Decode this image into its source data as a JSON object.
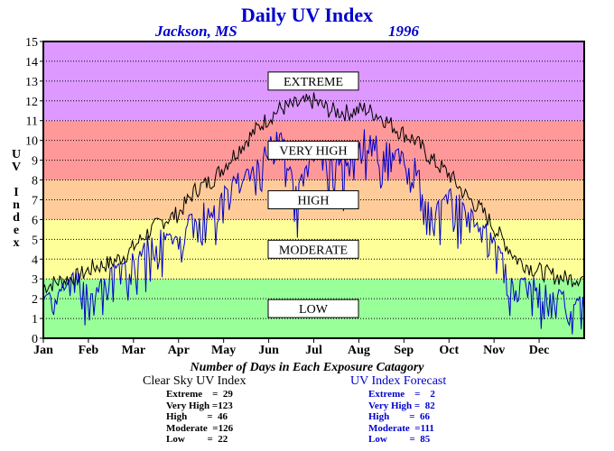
{
  "chart_data": {
    "type": "line",
    "title": "Daily UV Index",
    "subtitle_location": "Jackson, MS",
    "subtitle_year": "1996",
    "ylabel": "UV Index",
    "ylim": [
      0,
      15
    ],
    "yticks": [
      "0",
      "1",
      "2",
      "3",
      "4",
      "5",
      "6",
      "7",
      "8",
      "9",
      "10",
      "11",
      "12",
      "13",
      "14",
      "15"
    ],
    "xticks": [
      "Jan",
      "Feb",
      "Mar",
      "Apr",
      "May",
      "Jun",
      "Jul",
      "Aug",
      "Sep",
      "Oct",
      "Nov",
      "Dec"
    ],
    "grid": true,
    "bands": [
      {
        "label": "LOW",
        "from": 0,
        "to": 3,
        "color": "#99ff99"
      },
      {
        "label": "MODERATE",
        "from": 3,
        "to": 6,
        "color": "#ffff99"
      },
      {
        "label": "HIGH",
        "from": 6,
        "to": 8,
        "color": "#ffcc99"
      },
      {
        "label": "VERY HIGH",
        "from": 8,
        "to": 11,
        "color": "#ff9999"
      },
      {
        "label": "EXTREME",
        "from": 11,
        "to": 15,
        "color": "#dd99ff"
      }
    ],
    "series": [
      {
        "name": "Clear Sky UV Index",
        "color": "#000000",
        "values": [
          2.6,
          2.9,
          3.1,
          3.6,
          3.8,
          4.3,
          5.2,
          5.9,
          6.3,
          7.5,
          8.0,
          9.0,
          10.0,
          10.9,
          11.6,
          11.8,
          12.0,
          11.5,
          11.4,
          11.6,
          11.2,
          10.5,
          10.0,
          9.0,
          8.3,
          7.2,
          6.4,
          5.2,
          4.0,
          3.5,
          3.2,
          3.0,
          3.1
        ]
      },
      {
        "name": "UV Index Forecast",
        "color": "#0000cc",
        "values": [
          1.5,
          2.4,
          2.8,
          2.0,
          3.0,
          3.4,
          4.5,
          5.0,
          4.5,
          6.5,
          6.0,
          7.5,
          8.0,
          9.0,
          10.5,
          7.0,
          9.5,
          9.0,
          8.5,
          10.0,
          9.5,
          9.0,
          8.5,
          6.0,
          7.0,
          6.5,
          5.5,
          4.0,
          2.5,
          2.5,
          2.0,
          1.8,
          1.5
        ]
      }
    ],
    "summary_title": "Number of Days in Each Exposure Catagory",
    "clear_sky": {
      "heading": "Clear Sky UV Index",
      "rows": [
        "Extreme    =  29",
        "Very High =123",
        "High        =  46",
        "Moderate  =126",
        "Low         =  22"
      ]
    },
    "forecast": {
      "heading": "UV Index Forecast",
      "rows": [
        "Extreme    =    2",
        "Very High =  82",
        "High        =  66",
        "Moderate  =111",
        "Low         =  85"
      ]
    }
  }
}
